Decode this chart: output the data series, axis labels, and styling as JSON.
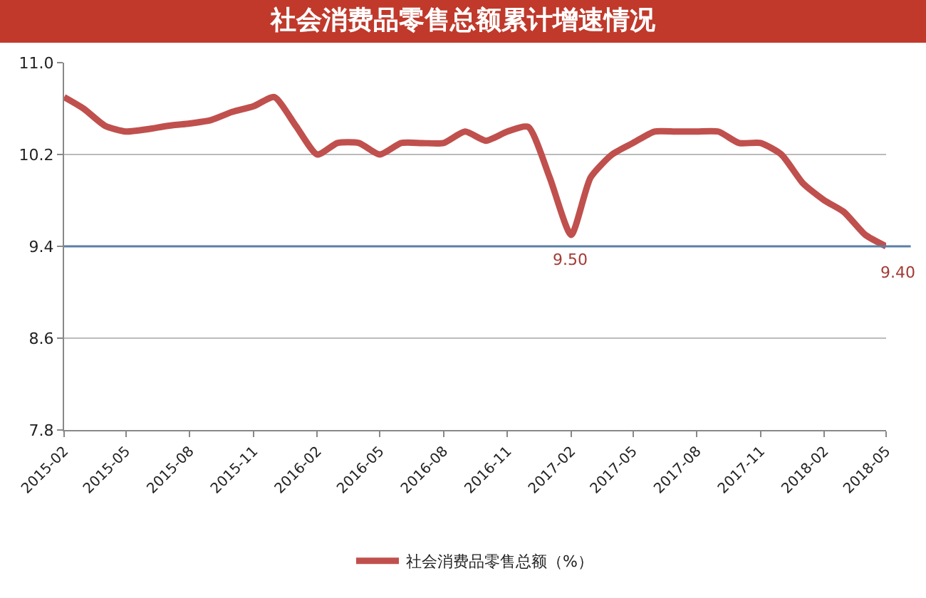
{
  "chart_data": {
    "type": "line",
    "title": "社会消费品零售总额累计增速情况",
    "x": [
      "2015-02",
      "2015-03",
      "2015-04",
      "2015-05",
      "2015-06",
      "2015-07",
      "2015-08",
      "2015-09",
      "2015-10",
      "2015-11",
      "2015-12",
      "2016-01",
      "2016-02",
      "2016-03",
      "2016-04",
      "2016-05",
      "2016-06",
      "2016-07",
      "2016-08",
      "2016-09",
      "2016-10",
      "2016-11",
      "2016-12",
      "2017-01",
      "2017-02",
      "2017-03",
      "2017-04",
      "2017-05",
      "2017-06",
      "2017-07",
      "2017-08",
      "2017-09",
      "2017-10",
      "2017-11",
      "2017-12",
      "2018-01",
      "2018-02",
      "2018-03",
      "2018-04",
      "2018-05"
    ],
    "series": [
      {
        "name": "社会消费品零售总额（%）",
        "color": "#c0504d",
        "values": [
          10.7,
          10.6,
          10.45,
          10.4,
          10.42,
          10.45,
          10.47,
          10.5,
          10.57,
          10.62,
          10.7,
          10.45,
          10.2,
          10.3,
          10.3,
          10.2,
          10.3,
          10.3,
          10.3,
          10.4,
          10.32,
          10.4,
          10.44,
          10.0,
          9.5,
          10.0,
          10.2,
          10.3,
          10.4,
          10.4,
          10.4,
          10.4,
          10.3,
          10.3,
          10.2,
          9.95,
          9.8,
          9.7,
          9.5,
          9.4
        ],
        "value_labels": [
          null,
          null,
          null,
          null,
          null,
          null,
          null,
          null,
          null,
          null,
          null,
          null,
          null,
          null,
          null,
          null,
          null,
          null,
          null,
          null,
          null,
          null,
          null,
          null,
          "9.50",
          null,
          null,
          null,
          null,
          null,
          null,
          null,
          null,
          null,
          null,
          null,
          null,
          null,
          null,
          "9.40"
        ]
      }
    ],
    "xlim": [
      "2015-02",
      "2018-05"
    ],
    "xticks": [
      "2015-02",
      "2015-05",
      "2015-08",
      "2015-11",
      "2016-02",
      "2016-05",
      "2016-08",
      "2016-11",
      "2017-02",
      "2017-05",
      "2017-08",
      "2017-11",
      "2018-02",
      "2018-05"
    ],
    "ylim": [
      7.8,
      11
    ],
    "yticks": [
      7.8,
      8.6,
      9.4,
      10.2,
      {
        "value": 11,
        "label": "11.0"
      }
    ],
    "ref_lines": [
      {
        "axis": "y",
        "value": 9.4,
        "color": "#5b7fa6"
      }
    ],
    "grid": "y",
    "legend": "bottom",
    "marker": "none",
    "line_style": "solid"
  }
}
